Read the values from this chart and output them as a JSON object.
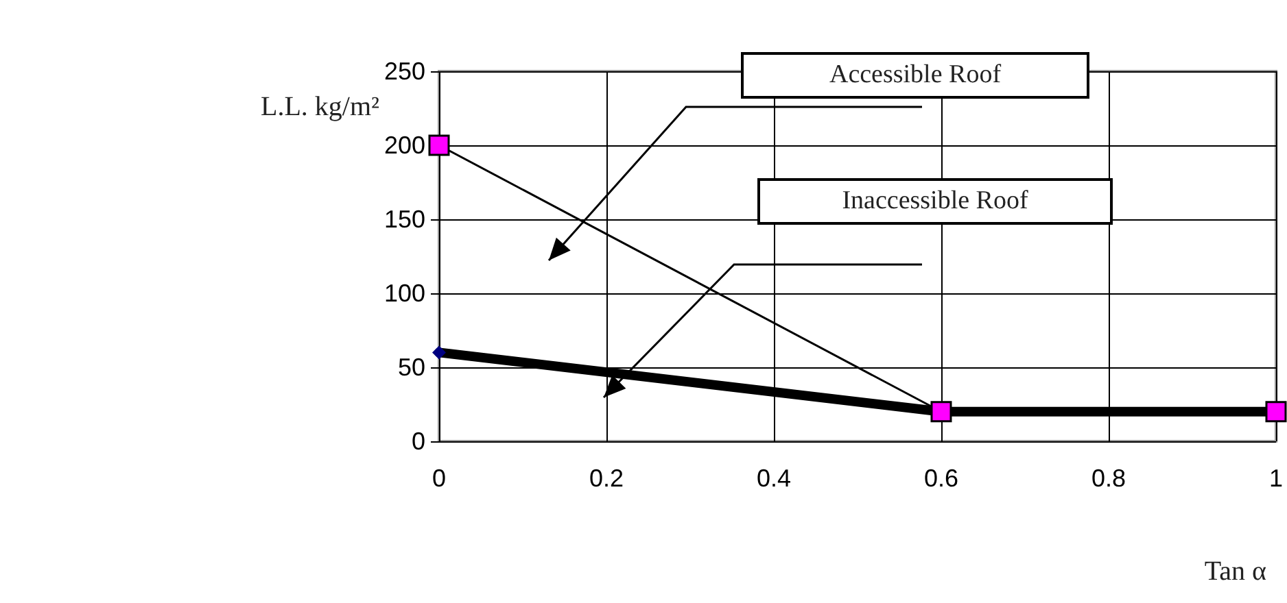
{
  "chart_data": {
    "type": "line",
    "xlabel": "Tan α",
    "ylabel": "L.L. kg/m²",
    "series": [
      {
        "name": "Accessible Roof",
        "color": "#000000",
        "colors": [
          "#ff00ff",
          "#ff00ff",
          "#ff00ff"
        ],
        "x": [
          0,
          0.6,
          1
        ],
        "values": [
          200,
          20,
          20
        ],
        "marker": "square"
      },
      {
        "name": "Inaccessible Roof",
        "color": "#000000",
        "colors": [
          "#000080",
          "#ff00ff",
          "#ff00ff"
        ],
        "x": [
          0,
          0.6,
          1
        ],
        "values": [
          60,
          20,
          20
        ],
        "marker": "diamond"
      }
    ],
    "xlim": [
      0,
      1
    ],
    "xticks": [
      0,
      0.2,
      0.4,
      0.6,
      0.8,
      1
    ],
    "ylim": [
      0,
      250
    ],
    "yticks": [
      0,
      50,
      100,
      150,
      200,
      250
    ],
    "grid": true,
    "legend": false
  }
}
